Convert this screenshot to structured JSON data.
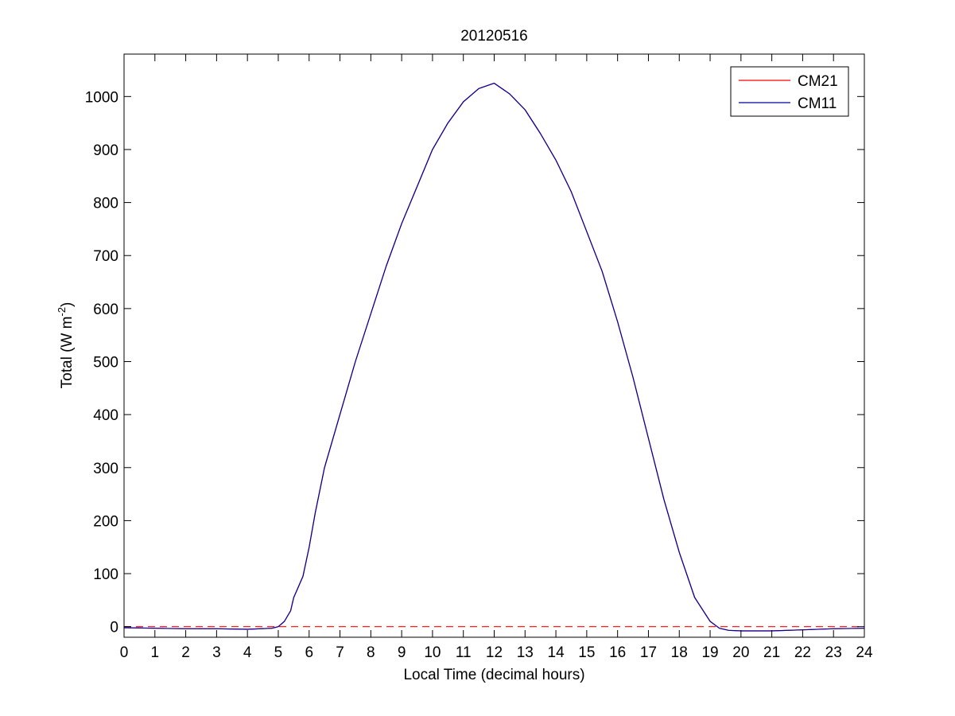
{
  "chart_data": {
    "type": "line",
    "title": "20120516",
    "xlabel": "Local Time (decimal hours)",
    "ylabel": {
      "base": "Total (W m",
      "exponent": "-2",
      "close": ")"
    },
    "xlim": [
      0,
      24
    ],
    "ylim": [
      -20,
      1080
    ],
    "xticks": [
      0,
      1,
      2,
      3,
      4,
      5,
      6,
      7,
      8,
      9,
      10,
      11,
      12,
      13,
      14,
      15,
      16,
      17,
      18,
      19,
      20,
      21,
      22,
      23,
      24
    ],
    "yticks": [
      0,
      100,
      200,
      300,
      400,
      500,
      600,
      700,
      800,
      900,
      1000
    ],
    "grid": false,
    "legend_position": "top-right",
    "zero_line": {
      "value": 0,
      "style": "dashed",
      "color": "#ff0000"
    },
    "series": [
      {
        "name": "CM21",
        "color": "#ff0000",
        "x": [
          0,
          1,
          2,
          3,
          4,
          4.8,
          5,
          5.2,
          5.4,
          5.5,
          5.6,
          5.8,
          6,
          6.2,
          6.5,
          7,
          7.5,
          8,
          8.5,
          9,
          9.5,
          10,
          10.5,
          11,
          11.5,
          12,
          12.5,
          13,
          13.5,
          14,
          14.5,
          15,
          15.5,
          16,
          16.5,
          17,
          17.5,
          18,
          18.5,
          19,
          19.3,
          19.6,
          20,
          21,
          22,
          23,
          24
        ],
        "y": [
          -2,
          -3,
          -4,
          -4,
          -5,
          -3,
          0,
          10,
          30,
          55,
          68,
          95,
          150,
          215,
          300,
          400,
          500,
          590,
          680,
          760,
          830,
          900,
          950,
          990,
          1015,
          1025,
          1005,
          975,
          930,
          880,
          820,
          745,
          670,
          575,
          470,
          355,
          240,
          140,
          55,
          10,
          -3,
          -7,
          -8,
          -8,
          -6,
          -4,
          -3
        ]
      },
      {
        "name": "CM11",
        "color": "#0000a0",
        "x": [
          0,
          1,
          2,
          3,
          4,
          4.8,
          5,
          5.2,
          5.4,
          5.5,
          5.6,
          5.8,
          6,
          6.2,
          6.5,
          7,
          7.5,
          8,
          8.5,
          9,
          9.5,
          10,
          10.5,
          11,
          11.5,
          12,
          12.5,
          13,
          13.5,
          14,
          14.5,
          15,
          15.5,
          16,
          16.5,
          17,
          17.5,
          18,
          18.5,
          19,
          19.3,
          19.6,
          20,
          21,
          22,
          23,
          24
        ],
        "y": [
          -2,
          -3,
          -4,
          -4,
          -5,
          -3,
          0,
          10,
          30,
          55,
          68,
          95,
          150,
          215,
          300,
          400,
          500,
          590,
          680,
          760,
          830,
          900,
          950,
          990,
          1015,
          1025,
          1005,
          975,
          930,
          880,
          820,
          745,
          670,
          575,
          470,
          355,
          240,
          140,
          55,
          10,
          -3,
          -7,
          -8,
          -8,
          -6,
          -4,
          -3
        ]
      }
    ]
  }
}
